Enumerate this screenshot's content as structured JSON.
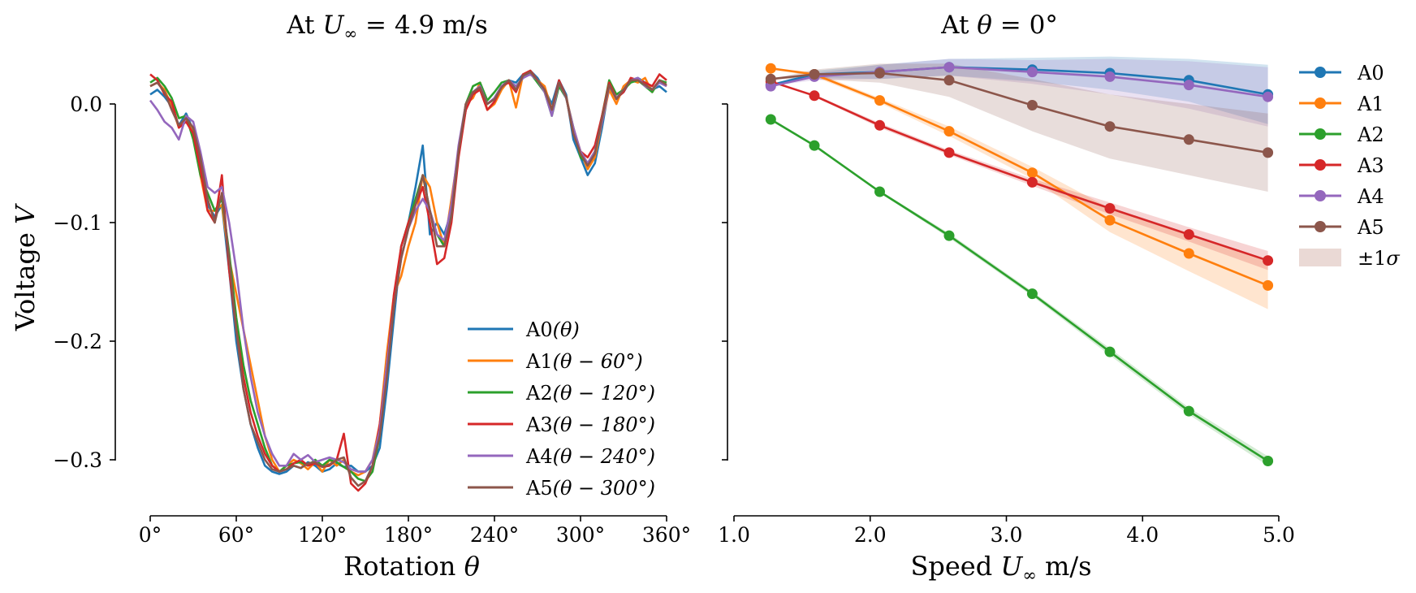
{
  "chart_data": [
    {
      "type": "line",
      "title": "At U∞ = 4.9 m/s",
      "title_parts": {
        "prefix": "At ",
        "var": "U",
        "sub": "∞",
        "eq": " = 4.9 m/s"
      },
      "xlabel": "Rotation θ",
      "xlabel_parts": {
        "text": "Rotation ",
        "var": "θ"
      },
      "ylabel": "Voltage V",
      "ylabel_parts": {
        "text": "Voltage ",
        "var": "V"
      },
      "xlim": [
        0,
        360
      ],
      "ylim": [
        -0.35,
        0.03
      ],
      "xticks": [
        0,
        60,
        120,
        180,
        240,
        300,
        360
      ],
      "xtick_labels": [
        "0°",
        "60°",
        "120°",
        "180°",
        "240°",
        "300°",
        "360°"
      ],
      "yticks": [
        0.0,
        -0.1,
        -0.2,
        -0.3
      ],
      "ytick_labels": [
        "0.0",
        "−0.1",
        "−0.2",
        "−0.3"
      ],
      "grid": false,
      "legend_position": "lower-right",
      "x": [
        0,
        5,
        10,
        15,
        20,
        25,
        30,
        35,
        40,
        45,
        50,
        55,
        60,
        65,
        70,
        75,
        80,
        85,
        90,
        95,
        100,
        105,
        110,
        115,
        120,
        125,
        130,
        135,
        140,
        145,
        150,
        155,
        160,
        165,
        170,
        175,
        180,
        185,
        190,
        195,
        200,
        205,
        210,
        215,
        220,
        225,
        230,
        235,
        240,
        245,
        250,
        255,
        260,
        265,
        270,
        275,
        280,
        285,
        290,
        295,
        300,
        305,
        310,
        315,
        320,
        325,
        330,
        335,
        340,
        345,
        350,
        355,
        360
      ],
      "series": [
        {
          "name": "A0(θ)",
          "name_parts": {
            "a": "A0",
            "m": "(θ)"
          },
          "color": "#1f77b4",
          "values": [
            0.008,
            0.012,
            0.006,
            -0.002,
            -0.018,
            -0.008,
            -0.022,
            -0.05,
            -0.085,
            -0.095,
            -0.085,
            -0.14,
            -0.2,
            -0.24,
            -0.27,
            -0.29,
            -0.305,
            -0.31,
            -0.312,
            -0.31,
            -0.305,
            -0.307,
            -0.302,
            -0.305,
            -0.31,
            -0.308,
            -0.303,
            -0.306,
            -0.305,
            -0.31,
            -0.31,
            -0.305,
            -0.29,
            -0.24,
            -0.18,
            -0.12,
            -0.1,
            -0.07,
            -0.035,
            -0.11,
            -0.1,
            -0.11,
            -0.09,
            -0.04,
            -0.005,
            0.01,
            0.015,
            0.0,
            0.005,
            0.015,
            0.02,
            0.018,
            0.025,
            0.028,
            0.022,
            0.012,
            0.0,
            0.02,
            0.008,
            -0.03,
            -0.045,
            -0.06,
            -0.05,
            -0.02,
            0.015,
            0.005,
            0.01,
            0.02,
            0.022,
            0.018,
            0.012,
            0.015,
            0.01
          ]
        },
        {
          "name": "A1(θ − 60°)",
          "name_parts": {
            "a": "A1",
            "m": "(θ − 60°)"
          },
          "color": "#ff7f0e",
          "values": [
            0.015,
            0.018,
            0.012,
            -0.002,
            -0.02,
            -0.012,
            -0.025,
            -0.06,
            -0.09,
            -0.09,
            -0.085,
            -0.13,
            -0.16,
            -0.19,
            -0.22,
            -0.25,
            -0.28,
            -0.3,
            -0.31,
            -0.305,
            -0.3,
            -0.303,
            -0.308,
            -0.302,
            -0.31,
            -0.3,
            -0.305,
            -0.3,
            -0.31,
            -0.313,
            -0.31,
            -0.3,
            -0.27,
            -0.21,
            -0.16,
            -0.145,
            -0.12,
            -0.1,
            -0.06,
            -0.07,
            -0.1,
            -0.12,
            -0.08,
            -0.04,
            0.0,
            0.005,
            0.018,
            -0.005,
            0.0,
            0.012,
            0.02,
            -0.003,
            0.025,
            0.028,
            0.02,
            0.015,
            -0.005,
            0.018,
            0.006,
            -0.02,
            -0.04,
            -0.055,
            -0.045,
            -0.015,
            0.012,
            0.0,
            0.015,
            0.02,
            0.018,
            0.022,
            0.01,
            0.02,
            0.015
          ]
        },
        {
          "name": "A2(θ − 120°)",
          "name_parts": {
            "a": "A2",
            "m": "(θ − 120°)"
          },
          "color": "#2ca02c",
          "values": [
            0.018,
            0.022,
            0.015,
            0.005,
            -0.012,
            -0.01,
            -0.03,
            -0.06,
            -0.075,
            -0.09,
            -0.08,
            -0.125,
            -0.18,
            -0.22,
            -0.25,
            -0.27,
            -0.29,
            -0.305,
            -0.31,
            -0.305,
            -0.303,
            -0.302,
            -0.305,
            -0.3,
            -0.305,
            -0.3,
            -0.302,
            -0.306,
            -0.31,
            -0.316,
            -0.318,
            -0.31,
            -0.28,
            -0.22,
            -0.17,
            -0.12,
            -0.1,
            -0.08,
            -0.06,
            -0.09,
            -0.11,
            -0.12,
            -0.09,
            -0.04,
            0.0,
            0.015,
            0.018,
            0.003,
            0.01,
            0.018,
            0.02,
            0.015,
            0.022,
            0.026,
            0.018,
            0.01,
            -0.01,
            0.015,
            0.005,
            -0.02,
            -0.045,
            -0.05,
            -0.04,
            -0.01,
            0.02,
            0.008,
            0.012,
            0.018,
            0.02,
            0.015,
            0.01,
            0.02,
            0.018
          ]
        },
        {
          "name": "A3(θ − 180°)",
          "name_parts": {
            "a": "A3",
            "m": "(θ − 180°)"
          },
          "color": "#d62728",
          "values": [
            0.025,
            0.02,
            0.008,
            0.002,
            -0.02,
            -0.015,
            -0.025,
            -0.055,
            -0.09,
            -0.1,
            -0.06,
            -0.14,
            -0.19,
            -0.23,
            -0.26,
            -0.28,
            -0.295,
            -0.305,
            -0.31,
            -0.308,
            -0.303,
            -0.3,
            -0.305,
            -0.303,
            -0.306,
            -0.305,
            -0.3,
            -0.278,
            -0.32,
            -0.326,
            -0.32,
            -0.305,
            -0.27,
            -0.22,
            -0.16,
            -0.12,
            -0.1,
            -0.085,
            -0.07,
            -0.1,
            -0.135,
            -0.13,
            -0.1,
            -0.045,
            -0.005,
            0.008,
            0.012,
            -0.005,
            0.002,
            0.015,
            0.018,
            0.01,
            0.025,
            0.028,
            0.02,
            0.012,
            -0.005,
            0.02,
            0.006,
            -0.025,
            -0.04,
            -0.045,
            -0.035,
            -0.01,
            0.018,
            0.005,
            0.01,
            0.022,
            0.02,
            0.018,
            0.015,
            0.025,
            0.02
          ]
        },
        {
          "name": "A4(θ − 240°)",
          "name_parts": {
            "a": "A4",
            "m": "(θ − 240°)"
          },
          "color": "#9467bd",
          "values": [
            0.003,
            -0.005,
            -0.015,
            -0.02,
            -0.03,
            -0.01,
            -0.015,
            -0.04,
            -0.07,
            -0.075,
            -0.07,
            -0.1,
            -0.14,
            -0.19,
            -0.23,
            -0.26,
            -0.28,
            -0.295,
            -0.305,
            -0.305,
            -0.295,
            -0.3,
            -0.296,
            -0.302,
            -0.3,
            -0.298,
            -0.3,
            -0.302,
            -0.308,
            -0.31,
            -0.31,
            -0.3,
            -0.275,
            -0.22,
            -0.17,
            -0.13,
            -0.105,
            -0.09,
            -0.08,
            -0.09,
            -0.11,
            -0.115,
            -0.085,
            -0.035,
            0.0,
            0.01,
            0.015,
            0.0,
            0.005,
            0.015,
            0.02,
            0.015,
            0.022,
            0.025,
            0.02,
            0.01,
            -0.01,
            0.018,
            0.005,
            -0.02,
            -0.04,
            -0.05,
            -0.04,
            -0.015,
            0.015,
            0.005,
            0.012,
            0.02,
            0.022,
            0.015,
            0.012,
            0.018,
            0.015
          ]
        },
        {
          "name": "A5(θ − 300°)",
          "name_parts": {
            "a": "A5",
            "m": "(θ − 300°)"
          },
          "color": "#8c564b",
          "values": [
            0.015,
            0.018,
            0.01,
            -0.005,
            -0.018,
            -0.012,
            -0.02,
            -0.045,
            -0.08,
            -0.1,
            -0.075,
            -0.13,
            -0.19,
            -0.24,
            -0.27,
            -0.285,
            -0.3,
            -0.308,
            -0.31,
            -0.308,
            -0.305,
            -0.307,
            -0.303,
            -0.302,
            -0.306,
            -0.304,
            -0.3,
            -0.298,
            -0.315,
            -0.322,
            -0.318,
            -0.305,
            -0.28,
            -0.23,
            -0.17,
            -0.13,
            -0.105,
            -0.085,
            -0.06,
            -0.09,
            -0.12,
            -0.12,
            -0.095,
            -0.04,
            0.0,
            0.01,
            0.014,
            0.0,
            0.004,
            0.014,
            0.02,
            0.012,
            0.024,
            0.027,
            0.02,
            0.012,
            -0.005,
            0.018,
            0.006,
            -0.025,
            -0.042,
            -0.052,
            -0.042,
            -0.012,
            0.016,
            0.004,
            0.012,
            0.02,
            0.02,
            0.016,
            0.012,
            0.02,
            0.016
          ]
        }
      ]
    },
    {
      "type": "line",
      "title": "At θ = 0°",
      "title_parts": {
        "prefix": "At ",
        "var": "θ",
        "eq": " = 0°"
      },
      "xlabel": "Speed U∞ m/s",
      "xlabel_parts": {
        "text": "Speed ",
        "var": "U",
        "sub": "∞",
        "unit": " m/s"
      },
      "xlim": [
        1.0,
        5.0
      ],
      "ylim": [
        -0.35,
        0.03
      ],
      "xticks": [
        1.0,
        2.0,
        3.0,
        4.0,
        5.0
      ],
      "xtick_labels": [
        "1.0",
        "2.0",
        "3.0",
        "4.0",
        "5.0"
      ],
      "grid": false,
      "legend_position": "outside-right",
      "markers": true,
      "x": [
        1.27,
        1.59,
        2.07,
        2.58,
        3.19,
        3.76,
        4.34,
        4.92
      ],
      "series": [
        {
          "name": "A0",
          "color": "#1f77b4",
          "values": [
            0.016,
            0.025,
            0.027,
            0.031,
            0.029,
            0.026,
            0.02,
            0.008
          ],
          "sigma": [
            0.0,
            0.003,
            0.006,
            0.007,
            0.01,
            0.014,
            0.018,
            0.025
          ]
        },
        {
          "name": "A1",
          "color": "#ff7f0e",
          "values": [
            0.03,
            0.025,
            0.003,
            -0.023,
            -0.058,
            -0.098,
            -0.126,
            -0.153
          ],
          "sigma": [
            0.0,
            0.002,
            0.002,
            0.004,
            0.005,
            0.01,
            0.015,
            0.02
          ]
        },
        {
          "name": "A2",
          "color": "#2ca02c",
          "values": [
            -0.013,
            -0.035,
            -0.074,
            -0.111,
            -0.16,
            -0.209,
            -0.259,
            -0.301
          ],
          "sigma": [
            0.0,
            0.001,
            0.001,
            0.002,
            0.002,
            0.003,
            0.003,
            0.004
          ]
        },
        {
          "name": "A3",
          "color": "#d62728",
          "values": [
            0.019,
            0.007,
            -0.018,
            -0.041,
            -0.066,
            -0.088,
            -0.11,
            -0.132
          ],
          "sigma": [
            0.0,
            0.001,
            0.002,
            0.002,
            0.003,
            0.005,
            0.006,
            0.008
          ]
        },
        {
          "name": "A4",
          "color": "#9467bd",
          "values": [
            0.015,
            0.023,
            0.027,
            0.031,
            0.027,
            0.023,
            0.016,
            0.006
          ],
          "sigma": [
            0.0,
            0.003,
            0.006,
            0.007,
            0.01,
            0.015,
            0.02,
            0.025
          ]
        },
        {
          "name": "A5",
          "color": "#8c564b",
          "values": [
            0.021,
            0.025,
            0.026,
            0.02,
            -0.001,
            -0.019,
            -0.03,
            -0.041
          ],
          "sigma": [
            0.0,
            0.004,
            0.008,
            0.014,
            0.022,
            0.027,
            0.03,
            0.033
          ]
        }
      ],
      "legend_extra": {
        "label": "±1σ",
        "label_parts": {
          "pm": "±1",
          "var": "σ"
        },
        "color": "#ead9d5"
      }
    }
  ]
}
